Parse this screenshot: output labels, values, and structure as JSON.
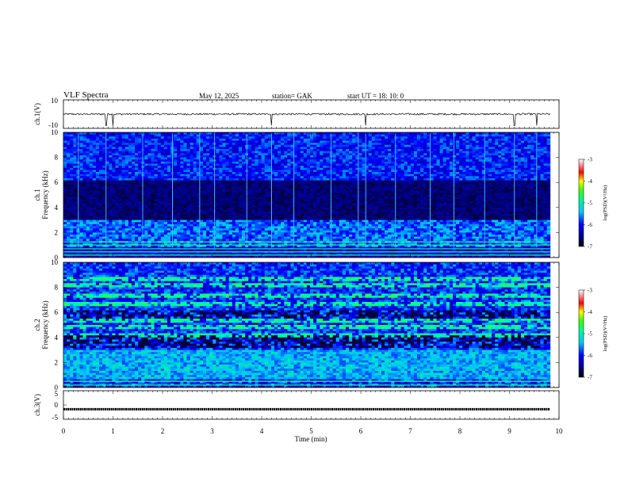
{
  "header": {
    "title": "VLF  Spectra",
    "date": "May 12,  2025",
    "station": "station= GAK",
    "start": "start  UT  =    18: 10: 0"
  },
  "chart_data": [
    {
      "type": "line",
      "panel": "ch1-waveform",
      "ylabel": "ch.1(V)",
      "ylim": [
        -10,
        10
      ],
      "y_ticks": [
        "10",
        "-10"
      ],
      "baseline": 0,
      "color": "#000000",
      "spikes_min": [
        0.86,
        1.0,
        4.2,
        6.1,
        9.1,
        9.55
      ]
    },
    {
      "type": "heatmap",
      "panel": "ch1-spectrogram",
      "ylabel_line1": "ch.1",
      "ylabel_line2": "Frequency  (kHz)",
      "ylim": [
        0,
        10
      ],
      "y_ticks": [
        "0",
        "2",
        "4",
        "6",
        "8",
        "10"
      ],
      "xlim": [
        0,
        10
      ],
      "data_extent_min": 9.82,
      "colorbar": {
        "label": "log(PSD)(V²/Hz)",
        "ticks": [
          "-3",
          "-4",
          "-5",
          "-6",
          "-7"
        ],
        "range": [
          -7,
          -3
        ]
      },
      "features": {
        "quiet_band_khz": [
          3.0,
          6.2
        ],
        "noise_band_khz": [
          0.8,
          2.8
        ],
        "narrowband_lines_khz": [
          0.2,
          0.45,
          0.7,
          1.0,
          1.25
        ],
        "impulse_min": [
          0.3,
          0.86,
          1.6,
          2.2,
          2.75,
          3.05,
          3.7,
          4.2,
          4.65,
          5.4,
          5.95,
          6.1,
          6.7,
          7.4,
          7.88,
          8.5,
          9.1,
          9.55
        ]
      }
    },
    {
      "type": "heatmap",
      "panel": "ch2-spectrogram",
      "ylabel_line1": "ch.2",
      "ylabel_line2": "Frequency  (kHz)",
      "ylim": [
        0,
        10
      ],
      "y_ticks": [
        "0",
        "2",
        "4",
        "6",
        "8",
        "10"
      ],
      "xlim": [
        0,
        10
      ],
      "data_extent_min": 9.82,
      "colorbar": {
        "label": "log(PSD)(V²/Hz)",
        "ticks": [
          "-3",
          "-4",
          "-5",
          "-6",
          "-7"
        ],
        "range": [
          -7,
          -3
        ]
      },
      "features": {
        "bright_bands_khz": [
          4.2,
          4.8,
          5.3,
          6.7,
          7.3,
          8.2,
          8.7
        ],
        "noise_band_khz": [
          0.6,
          3.0
        ],
        "narrowband_lines_khz": [
          0.2,
          0.5
        ]
      }
    },
    {
      "type": "line",
      "panel": "ch3-waveform",
      "ylabel": "ch.3(V)",
      "ylim": [
        -5,
        5
      ],
      "y_ticks": [
        "5",
        "0",
        "-5"
      ],
      "baseline": -1.5,
      "color": "#000000"
    }
  ],
  "x_axis": {
    "label": "Time  (min)",
    "ticks": [
      "0",
      "1",
      "2",
      "3",
      "4",
      "5",
      "6",
      "7",
      "8",
      "9",
      "10"
    ],
    "range": [
      0,
      10
    ]
  }
}
